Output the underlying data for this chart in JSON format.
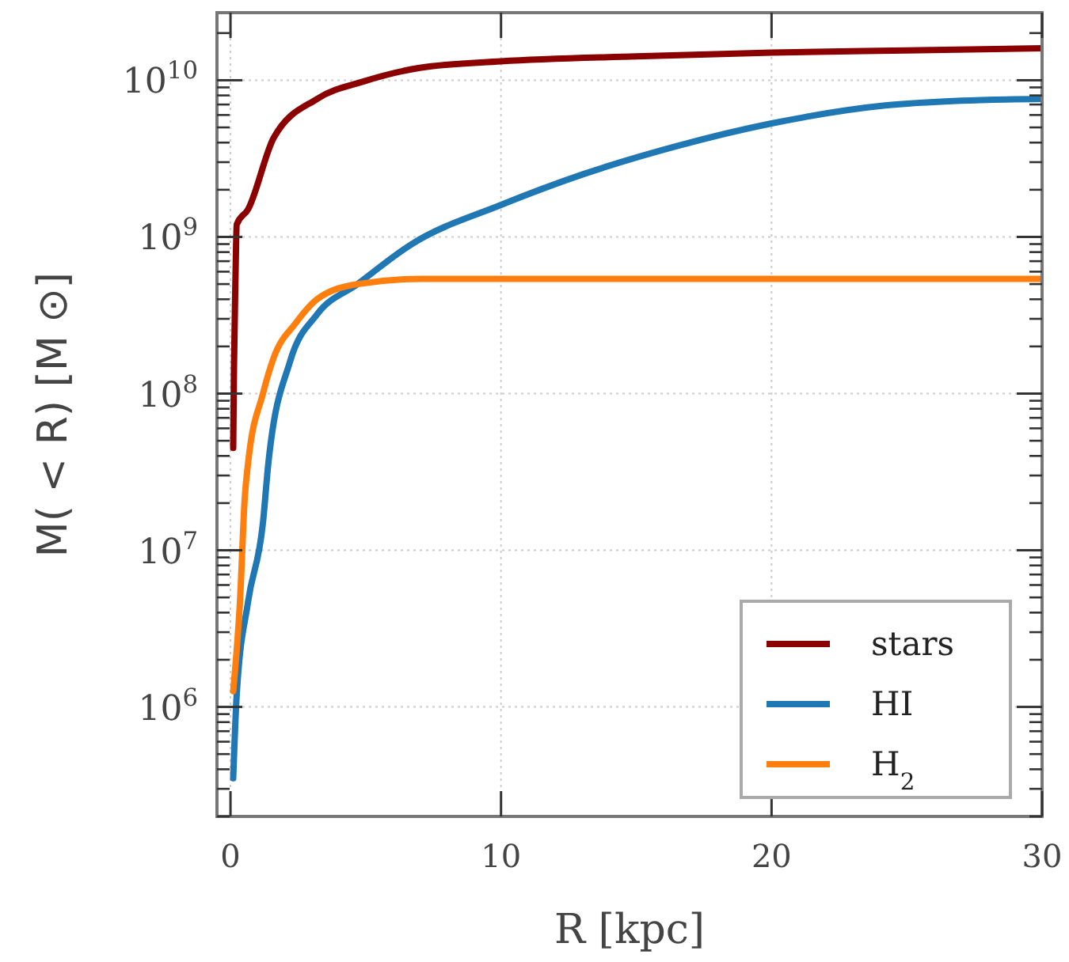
{
  "chart_data": {
    "type": "line",
    "xlabel": "R [kpc]",
    "ylabel": "M( < R) [M ⊙]",
    "log": "y",
    "grid": true,
    "legend": "bottom right",
    "xlim": [
      -0.5,
      30
    ],
    "xticks": [
      0,
      10,
      20,
      30
    ],
    "ylim": [
      200000,
      27000000000
    ],
    "yticks": [
      {
        "value": 1000000,
        "label": "10$^{6}$"
      },
      {
        "value": 10000000,
        "label": "10$^{7}$"
      },
      {
        "value": 100000000,
        "label": "10$^{8}$"
      },
      {
        "value": 1000000000,
        "label": "10$^{9}$"
      },
      {
        "value": 10000000000,
        "label": "10$^{10}$"
      }
    ],
    "line_style": "solid",
    "marker": "none",
    "series": [
      {
        "name": "stars",
        "color": "#8b0000",
        "x": [
          0.1,
          0.13,
          0.18,
          0.23,
          0.65,
          1.6,
          3.2,
          4.9,
          7,
          10,
          15,
          20,
          25,
          30
        ],
        "values": [
          45000000,
          150000000,
          500000000,
          1200000000,
          1500000000,
          4300000000,
          7600000000,
          9800000000,
          12000000000,
          13200000000,
          14200000000,
          15000000000,
          15500000000,
          16000000000
        ]
      },
      {
        "name": "HI",
        "color": "#1f77b4",
        "x": [
          0.1,
          0.23,
          0.65,
          1.2,
          1.4,
          2.2,
          3.2,
          4.7,
          6.7,
          10,
          13,
          16.5,
          20,
          24.2,
          27,
          30
        ],
        "values": [
          350000,
          1200000,
          4700000,
          15000000,
          36000000,
          160000000,
          320000000,
          500000000,
          900000000,
          1600000000,
          2500000000,
          3800000000,
          5300000000,
          6900000000,
          7400000000,
          7600000000
        ]
      },
      {
        "name": "H$_{2}$",
        "color": "#ff7f0e",
        "x": [
          0.1,
          0.35,
          0.53,
          0.65,
          1.2,
          1.6,
          2.4,
          3.2,
          4.7,
          7.1,
          15,
          30
        ],
        "values": [
          1260000,
          4700000,
          22000000,
          36000000,
          100000000,
          170000000,
          280000000,
          400000000,
          500000000,
          540000000,
          540000000,
          540000000
        ]
      }
    ]
  }
}
